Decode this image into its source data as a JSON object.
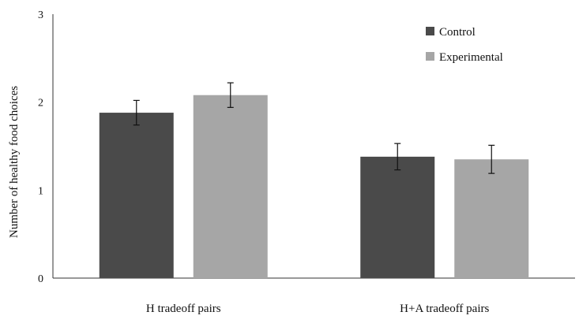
{
  "chart_data": {
    "type": "bar",
    "title": "",
    "xlabel": "",
    "ylabel": "Number of healthy food choices",
    "ylim": [
      0,
      3
    ],
    "yticks": [
      0,
      1,
      2,
      3
    ],
    "grid": false,
    "legend_position": "top-right",
    "categories": [
      "H tradeoff pairs",
      "H+A tradeoff pairs"
    ],
    "series": [
      {
        "name": "Control",
        "color": "#4a4a4a",
        "values": [
          1.88,
          1.38
        ],
        "errors": [
          0.14,
          0.15
        ]
      },
      {
        "name": "Experimental",
        "color": "#a6a6a6",
        "values": [
          2.08,
          1.35
        ],
        "errors": [
          0.14,
          0.16
        ]
      }
    ]
  }
}
